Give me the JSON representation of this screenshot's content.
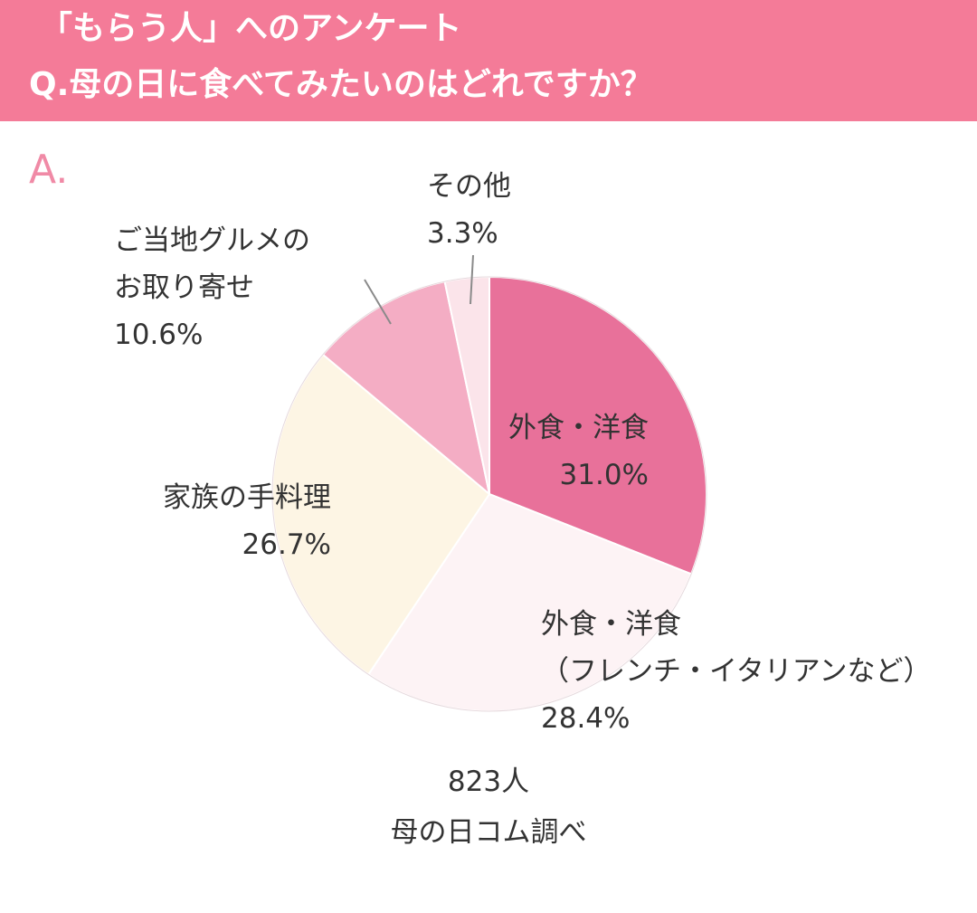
{
  "header": {
    "line1": "「もらう人」へのアンケート",
    "line2": "Q.母の日に食べてみたいのはどれですか？"
  },
  "answer_mark": "A.",
  "chart_data": {
    "type": "pie",
    "start_angle_deg": 0,
    "direction": "clockwise",
    "slices": [
      {
        "label": "外食・洋食",
        "value": 31.0,
        "value_label": "31.0%",
        "color": "#e8719a"
      },
      {
        "label": "外食・洋食\n（フレンチ・イタリアンなど）",
        "value": 28.4,
        "value_label": "28.4%",
        "color": "#fdf3f5"
      },
      {
        "label": "家族の手料理",
        "value": 26.7,
        "value_label": "26.7%",
        "color": "#fdf5e4"
      },
      {
        "label": "ご当地グルメの\nお取り寄せ",
        "value": 10.6,
        "value_label": "10.6%",
        "color": "#f4adc4"
      },
      {
        "label": "その他",
        "value": 3.3,
        "value_label": "3.3%",
        "color": "#fbe4ea"
      }
    ]
  },
  "footer": {
    "respondents": "823人",
    "source": "母の日コム調べ"
  }
}
